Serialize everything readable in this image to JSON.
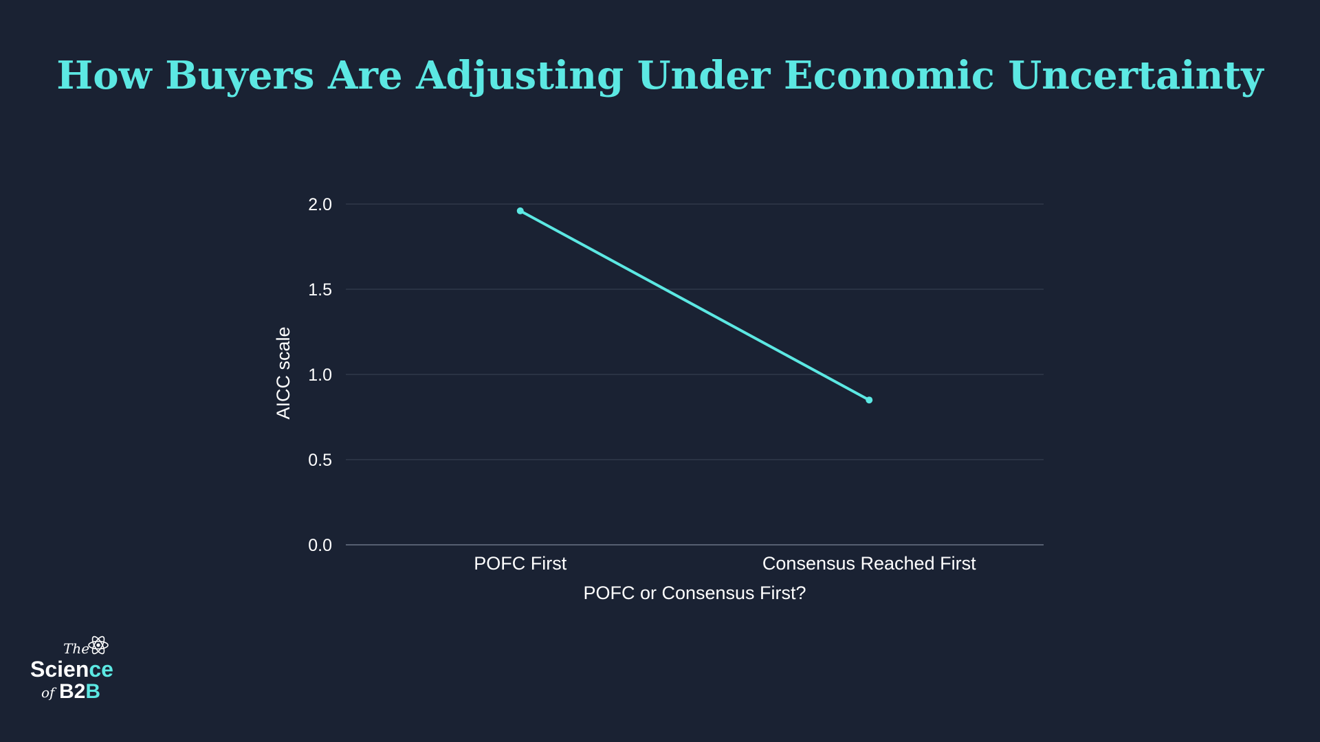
{
  "title": "How Buyers Are Adjusting Under Economic Uncertainty",
  "colors": {
    "background": "#1a2233",
    "accent": "#5ce8e3",
    "grid": "#3a4456",
    "text": "#ffffff"
  },
  "chart_data": {
    "type": "line",
    "title": "How Buyers Are Adjusting Under Economic Uncertainty",
    "xlabel": "POFC or Consensus First?",
    "ylabel": "AICC scale",
    "categories": [
      "POFC First",
      "Consensus Reached First"
    ],
    "series": [
      {
        "name": "AICC scale",
        "values": [
          1.96,
          0.85
        ]
      }
    ],
    "ylim": [
      0,
      2.0
    ],
    "yticks": [
      0.0,
      0.5,
      1.0,
      1.5,
      2.0
    ],
    "ytick_labels": [
      "0.0",
      "0.5",
      "1.0",
      "1.5",
      "2.0"
    ],
    "grid": true,
    "legend": "none"
  },
  "logo": {
    "the": "The",
    "science_part1": "Scien",
    "science_part2": "ce",
    "of": "of",
    "b2b_part1": "B2",
    "b2b_part2": "B"
  }
}
